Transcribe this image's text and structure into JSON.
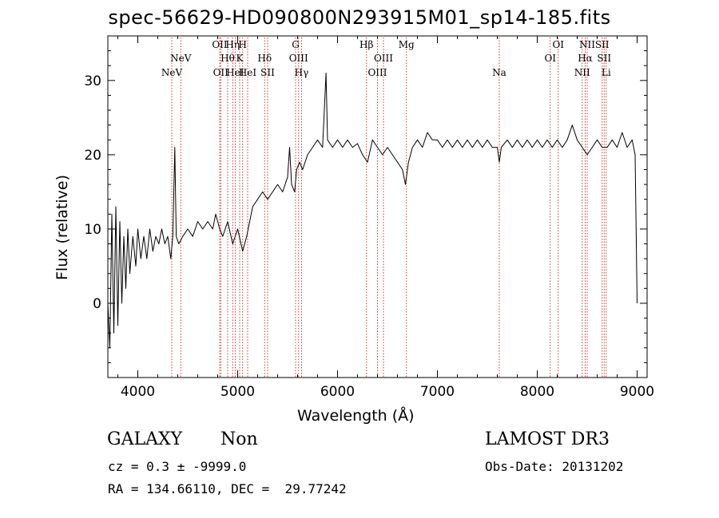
{
  "header": {
    "title": "spec-56629-HD090800N293915M01_sp14-185.fits"
  },
  "chart_data": {
    "type": "line",
    "title": "spec-56629-HD090800N293915M01_sp14-185.fits",
    "xlabel": "Wavelength (Å)",
    "ylabel": "Flux (relative)",
    "xlim": [
      3700,
      9100
    ],
    "ylim": [
      -10,
      36
    ],
    "xticks": [
      4000,
      5000,
      6000,
      7000,
      8000,
      9000
    ],
    "yticks": [
      0,
      10,
      20,
      30
    ],
    "grid": false,
    "series": [
      {
        "values": [
          [
            3700,
            0
          ],
          [
            3720,
            -6
          ],
          [
            3740,
            12
          ],
          [
            3760,
            -4
          ],
          [
            3780,
            13
          ],
          [
            3800,
            -3
          ],
          [
            3820,
            11
          ],
          [
            3840,
            0
          ],
          [
            3860,
            9
          ],
          [
            3880,
            2
          ],
          [
            3900,
            10
          ],
          [
            3920,
            4
          ],
          [
            3950,
            9
          ],
          [
            3980,
            5
          ],
          [
            4000,
            10
          ],
          [
            4030,
            6
          ],
          [
            4060,
            9
          ],
          [
            4090,
            6
          ],
          [
            4120,
            10
          ],
          [
            4150,
            7
          ],
          [
            4180,
            9
          ],
          [
            4210,
            8
          ],
          [
            4240,
            10
          ],
          [
            4270,
            8
          ],
          [
            4300,
            9
          ],
          [
            4330,
            6
          ],
          [
            4350,
            9
          ],
          [
            4370,
            21
          ],
          [
            4385,
            9
          ],
          [
            4410,
            8
          ],
          [
            4450,
            9
          ],
          [
            4500,
            10
          ],
          [
            4550,
            9
          ],
          [
            4600,
            11
          ],
          [
            4650,
            10
          ],
          [
            4700,
            11
          ],
          [
            4750,
            10
          ],
          [
            4780,
            12
          ],
          [
            4820,
            10
          ],
          [
            4850,
            9
          ],
          [
            4900,
            11
          ],
          [
            4950,
            8
          ],
          [
            5000,
            10
          ],
          [
            5050,
            7
          ],
          [
            5090,
            9
          ],
          [
            5120,
            11
          ],
          [
            5150,
            13
          ],
          [
            5200,
            14
          ],
          [
            5250,
            15
          ],
          [
            5300,
            14
          ],
          [
            5350,
            15
          ],
          [
            5400,
            16
          ],
          [
            5450,
            15
          ],
          [
            5500,
            17
          ],
          [
            5520,
            21
          ],
          [
            5540,
            16
          ],
          [
            5570,
            15
          ],
          [
            5590,
            18
          ],
          [
            5620,
            19
          ],
          [
            5650,
            18
          ],
          [
            5700,
            20
          ],
          [
            5750,
            21
          ],
          [
            5800,
            22
          ],
          [
            5850,
            21
          ],
          [
            5885,
            31
          ],
          [
            5900,
            22
          ],
          [
            5950,
            21
          ],
          [
            6000,
            22
          ],
          [
            6050,
            21
          ],
          [
            6100,
            22
          ],
          [
            6150,
            21
          ],
          [
            6200,
            21.5
          ],
          [
            6250,
            20
          ],
          [
            6300,
            19
          ],
          [
            6350,
            22
          ],
          [
            6400,
            21
          ],
          [
            6450,
            20
          ],
          [
            6500,
            21
          ],
          [
            6550,
            20
          ],
          [
            6600,
            19
          ],
          [
            6650,
            18
          ],
          [
            6680,
            16
          ],
          [
            6710,
            19
          ],
          [
            6750,
            21
          ],
          [
            6800,
            22
          ],
          [
            6850,
            21
          ],
          [
            6900,
            23
          ],
          [
            6950,
            22
          ],
          [
            7000,
            22
          ],
          [
            7050,
            21
          ],
          [
            7100,
            22
          ],
          [
            7150,
            21
          ],
          [
            7200,
            22
          ],
          [
            7250,
            21
          ],
          [
            7300,
            22
          ],
          [
            7350,
            21
          ],
          [
            7400,
            22
          ],
          [
            7450,
            21
          ],
          [
            7500,
            22
          ],
          [
            7550,
            21
          ],
          [
            7600,
            21
          ],
          [
            7620,
            19
          ],
          [
            7640,
            21
          ],
          [
            7700,
            22
          ],
          [
            7750,
            21
          ],
          [
            7800,
            22
          ],
          [
            7850,
            21
          ],
          [
            7900,
            22
          ],
          [
            7950,
            21
          ],
          [
            8000,
            22
          ],
          [
            8050,
            21
          ],
          [
            8100,
            22
          ],
          [
            8150,
            21
          ],
          [
            8200,
            22
          ],
          [
            8250,
            21
          ],
          [
            8300,
            22
          ],
          [
            8350,
            24
          ],
          [
            8400,
            22
          ],
          [
            8450,
            21
          ],
          [
            8500,
            20
          ],
          [
            8550,
            21
          ],
          [
            8600,
            22
          ],
          [
            8650,
            21
          ],
          [
            8700,
            21
          ],
          [
            8750,
            22
          ],
          [
            8800,
            21
          ],
          [
            8850,
            23
          ],
          [
            8900,
            21
          ],
          [
            8950,
            22
          ],
          [
            8980,
            20
          ],
          [
            9000,
            0
          ]
        ]
      }
    ],
    "line_markers": [
      {
        "w": 4340,
        "label": "NeV",
        "row": 2
      },
      {
        "w": 4430,
        "label": "NeV",
        "row": 1
      },
      {
        "w": 4820,
        "label": "OII",
        "row": 0
      },
      {
        "w": 4830,
        "label": "OII",
        "row": 2
      },
      {
        "w": 4900,
        "label": "Hθ",
        "row": 1
      },
      {
        "w": 4950,
        "label": "Hη",
        "row": 0
      },
      {
        "w": 4975,
        "label": "HeI",
        "row": 2
      },
      {
        "w": 5020,
        "label": "K",
        "row": 1
      },
      {
        "w": 5050,
        "label": "H",
        "row": 0
      },
      {
        "w": 5100,
        "label": "HeI",
        "row": 2
      },
      {
        "w": 5270,
        "label": "Hδ",
        "row": 1
      },
      {
        "w": 5300,
        "label": "SII",
        "row": 2
      },
      {
        "w": 5580,
        "label": "G",
        "row": 0
      },
      {
        "w": 5610,
        "label": "OIII",
        "row": 1
      },
      {
        "w": 5640,
        "label": "Hγ",
        "row": 2
      },
      {
        "w": 6290,
        "label": "Hβ",
        "row": 0
      },
      {
        "w": 6400,
        "label": "OIII",
        "row": 2
      },
      {
        "w": 6460,
        "label": "OIII",
        "row": 1
      },
      {
        "w": 6690,
        "label": "Mg",
        "row": 0
      },
      {
        "w": 7620,
        "label": "Na",
        "row": 2
      },
      {
        "w": 8130,
        "label": "OI",
        "row": 1
      },
      {
        "w": 8210,
        "label": "OI",
        "row": 0
      },
      {
        "w": 8450,
        "label": "NII",
        "row": 2
      },
      {
        "w": 8480,
        "label": "Hα",
        "row": 1
      },
      {
        "w": 8500,
        "label": "NII",
        "row": 0
      },
      {
        "w": 8650,
        "label": "SII",
        "row": 0
      },
      {
        "w": 8670,
        "label": "SII",
        "row": 1
      },
      {
        "w": 8690,
        "label": "Li",
        "row": 2
      }
    ]
  },
  "footer": {
    "class_label": "GALAXY",
    "subclass_label": "Non",
    "cz_text": "cz = 0.3 ± -9999.0",
    "coords_text": "RA = 134.66110, DEC =  29.77242",
    "survey_label": "LAMOST DR3",
    "obs_date_text": "Obs-Date: 20131202"
  },
  "colors": {
    "marker": "#cc0000",
    "spectrum": "#000000",
    "axes": "#000000"
  }
}
